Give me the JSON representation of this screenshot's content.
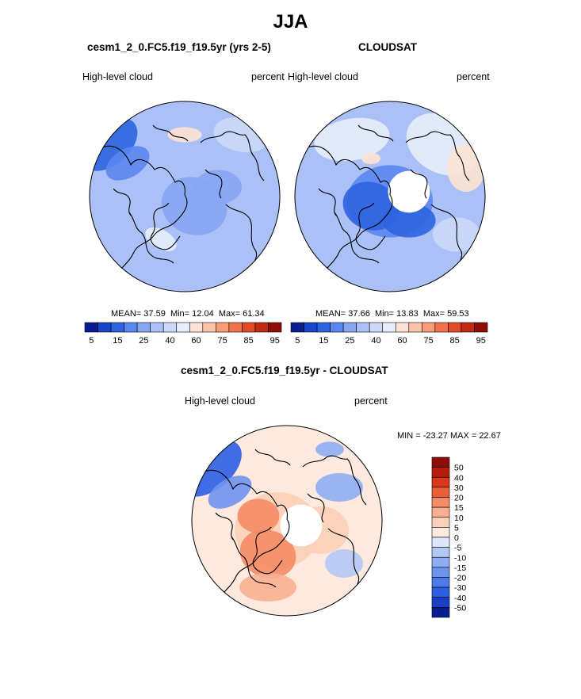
{
  "title": "JJA",
  "colors": {
    "abs_scale": [
      "#0a1c8f",
      "#1845c9",
      "#2f64e0",
      "#5a86ef",
      "#86a5f3",
      "#aac0f6",
      "#cbd9f8",
      "#e6eefb",
      "#fde3d3",
      "#fbc4a8",
      "#f89d78",
      "#f2734b",
      "#e04a26",
      "#bf2a12",
      "#8e0d07"
    ],
    "diff_scale": [
      "#0a1c8f",
      "#1a40c8",
      "#2e5ee3",
      "#4d7aea",
      "#6f94ef",
      "#8fadf3",
      "#b4c8f6",
      "#dde7f9",
      "#fde9dd",
      "#fbd0b8",
      "#f8b090",
      "#f48c66",
      "#ee5e36",
      "#d9381b",
      "#b41d0b",
      "#8e0d07"
    ],
    "coast": "#000000"
  },
  "chart_data": [
    {
      "type": "heatmap",
      "projection": "polar-stereographic-north",
      "title": "cesm1_2_0.FC5.f19_f19.5yr (yrs 2-5)",
      "left_label": "High-level cloud",
      "right_label": "percent",
      "stats": {
        "mean_label": "MEAN=",
        "mean": "37.59",
        "min_label": "Min=",
        "min": "12.04",
        "max_label": "Max=",
        "max": "61.34"
      },
      "colorbar": {
        "levels": [
          "5",
          "15",
          "25",
          "40",
          "60",
          "75",
          "85",
          "95"
        ]
      }
    },
    {
      "type": "heatmap",
      "projection": "polar-stereographic-north",
      "title": "CLOUDSAT",
      "left_label": "High-level cloud",
      "right_label": "percent",
      "stats": {
        "mean_label": "MEAN=",
        "mean": "37.66",
        "min_label": "Min=",
        "min": "13.83",
        "max_label": "Max=",
        "max": "59.53"
      },
      "colorbar": {
        "levels": [
          "5",
          "15",
          "25",
          "40",
          "60",
          "75",
          "85",
          "95"
        ]
      }
    },
    {
      "type": "heatmap",
      "projection": "polar-stereographic-north",
      "title": "cesm1_2_0.FC5.f19_f19.5yr - CLOUDSAT",
      "left_label": "High-level cloud",
      "right_label": "percent",
      "stats_text": "MIN = -23.27 MAX =  22.67",
      "colorbar": {
        "levels": [
          "50",
          "40",
          "30",
          "20",
          "15",
          "10",
          "5",
          "0",
          "-5",
          "-10",
          "-15",
          "-20",
          "-30",
          "-40",
          "-50"
        ]
      }
    }
  ]
}
